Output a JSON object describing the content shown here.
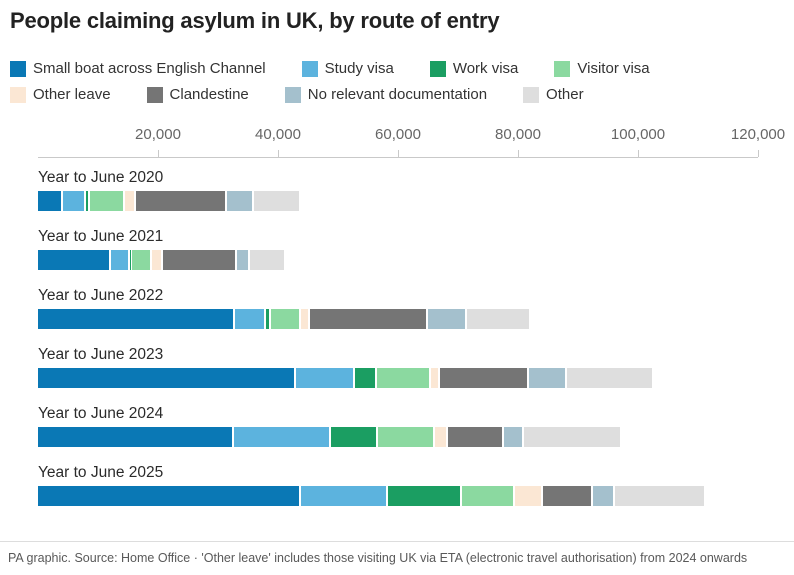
{
  "title": "People claiming asylum in UK, by route of entry",
  "footer": "PA graphic. Source: Home Office · 'Other leave' includes those visiting UK via ETA (electronic travel authorisation) from 2024 onwards",
  "chart_data": {
    "type": "bar",
    "orientation": "horizontal",
    "stacked": true,
    "title": "People claiming asylum in UK, by route of entry",
    "xlabel": "",
    "ylabel": "",
    "xlim": [
      0,
      120000
    ],
    "grid": false,
    "legend_position": "top",
    "axis_ticks": [
      20000,
      40000,
      60000,
      80000,
      100000,
      120000
    ],
    "tick_labels": [
      "20,000",
      "40,000",
      "60,000",
      "80,000",
      "100,000",
      "120,000"
    ],
    "categories": [
      "Year to June 2020",
      "Year to June 2021",
      "Year to June 2022",
      "Year to June 2023",
      "Year to June 2024",
      "Year to June 2025"
    ],
    "series": [
      {
        "name": "Small boat across English Channel",
        "color": "#0a78b5",
        "values": [
          3900,
          11800,
          32500,
          42700,
          32300,
          43500
        ]
      },
      {
        "name": "Study visa",
        "color": "#5cb3de",
        "values": [
          3400,
          2800,
          4900,
          9400,
          15800,
          14200
        ]
      },
      {
        "name": "Work visa",
        "color": "#1b9e62",
        "values": [
          400,
          150,
          500,
          3400,
          7500,
          11900
        ]
      },
      {
        "name": "Visitor visa",
        "color": "#8bd9a0",
        "values": [
          5500,
          2900,
          4600,
          8600,
          9300,
          8500
        ]
      },
      {
        "name": "Other leave",
        "color": "#fbe7d4",
        "values": [
          1400,
          1550,
          1250,
          1250,
          1800,
          4400
        ]
      },
      {
        "name": "Clandestine",
        "color": "#757575",
        "values": [
          14900,
          11900,
          19300,
          14500,
          8900,
          8000
        ]
      },
      {
        "name": "No relevant documentation",
        "color": "#a4c0cd",
        "values": [
          4100,
          1900,
          6050,
          6050,
          3100,
          3400
        ]
      },
      {
        "name": "Other",
        "color": "#dedede",
        "values": [
          7500,
          5700,
          10400,
          14100,
          16000,
          14800
        ]
      }
    ]
  }
}
